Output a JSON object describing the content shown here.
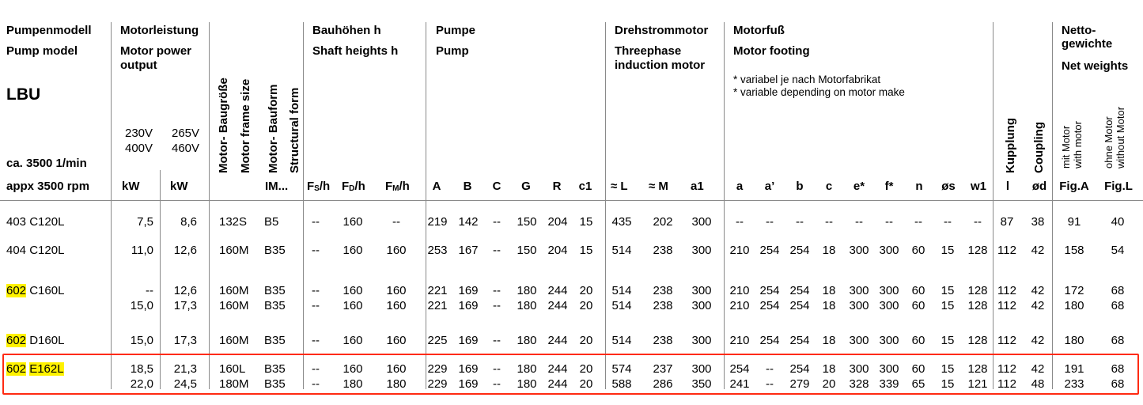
{
  "header": {
    "pump_model": {
      "de": "Pumpenmodell",
      "en": "Pump model",
      "series": "LBU",
      "speed_de": "ca. 3500 1/min",
      "speed_en": "appx 3500 rpm"
    },
    "motor_power": {
      "de": "Motorleistung",
      "en1": "Motor power",
      "en2": "output",
      "v1a": "230V",
      "v1b": "400V",
      "v2a": "265V",
      "v2b": "460V",
      "unit1": "kW",
      "unit2": "kW"
    },
    "motor_frame": {
      "de": "Motor- Baugröße",
      "en": "Motor frame size"
    },
    "motor_form": {
      "de": "Motor- Bauform",
      "en": "Structural form",
      "unit": "IM..."
    },
    "shaft_heights": {
      "de": "Bauhöhen h",
      "en": "Shaft heights h",
      "cols": [
        {
          "main": "F",
          "sub": "S",
          "tail": "/h"
        },
        {
          "main": "F",
          "sub": "D",
          "tail": "/h"
        },
        {
          "main": "F",
          "sub": "M",
          "tail": "/h"
        }
      ]
    },
    "pump": {
      "de": "Pumpe",
      "en": "Pump",
      "cols": [
        "A",
        "B",
        "C",
        "G",
        "R",
        "c1"
      ]
    },
    "motor": {
      "de": "Drehstrommotor",
      "en1": "Threephase",
      "en2": "induction motor",
      "cols": [
        "≈ L",
        "≈ M",
        "a1"
      ]
    },
    "footing": {
      "de": "Motorfuß",
      "en": "Motor footing",
      "note_de": "* variabel je nach Motorfabrikat",
      "note_en": "* variable depending on motor make",
      "cols": [
        "a",
        "a’",
        "b",
        "c",
        "e*",
        "f*",
        "n",
        "øs",
        "w1"
      ]
    },
    "coupling": {
      "de": "Kupplung",
      "en": "Coupling",
      "cols": [
        "l",
        "ød"
      ]
    },
    "weights": {
      "de1": "Netto-",
      "de2": "gewichte",
      "en": "Net weights",
      "with_de": "mit Motor",
      "with_en": "with motor",
      "without_de": "ohne Motor",
      "without_en": "without Motor",
      "cols": [
        "Fig.A",
        "Fig.L"
      ]
    }
  },
  "rows": [
    {
      "model_prefix": "403",
      "model_suffix": "C120L",
      "highlight_prefix": false,
      "highlight_suffix": false,
      "lines": [
        {
          "kw1": "7,5",
          "kw2": "8,6",
          "frame": "132S",
          "form": "B5",
          "fs": "--",
          "fd": "160",
          "fm": "--",
          "A": "219",
          "B": "142",
          "C": "--",
          "G": "150",
          "R": "204",
          "c1": "15",
          "L": "435",
          "M": "202",
          "a1": "300",
          "a": "--",
          "a2": "--",
          "b": "--",
          "c": "--",
          "e": "--",
          "f": "--",
          "n": "--",
          "s": "--",
          "w1": "--",
          "l": "87",
          "d": "38",
          "figA": "91",
          "figL": "40"
        }
      ]
    },
    {
      "model_prefix": "404",
      "model_suffix": "C120L",
      "highlight_prefix": false,
      "highlight_suffix": false,
      "lines": [
        {
          "kw1": "11,0",
          "kw2": "12,6",
          "frame": "160M",
          "form": "B35",
          "fs": "--",
          "fd": "160",
          "fm": "160",
          "A": "253",
          "B": "167",
          "C": "--",
          "G": "150",
          "R": "204",
          "c1": "15",
          "L": "514",
          "M": "238",
          "a1": "300",
          "a": "210",
          "a2": "254",
          "b": "254",
          "c": "18",
          "e": "300",
          "f": "300",
          "n": "60",
          "s": "15",
          "w1": "128",
          "l": "112",
          "d": "42",
          "figA": "158",
          "figL": "54"
        }
      ]
    },
    {
      "model_prefix": "602",
      "model_suffix": "C160L",
      "highlight_prefix": true,
      "highlight_suffix": false,
      "lines": [
        {
          "kw1": "--",
          "kw2": "12,6",
          "frame": "160M",
          "form": "B35",
          "fs": "--",
          "fd": "160",
          "fm": "160",
          "A": "221",
          "B": "169",
          "C": "--",
          "G": "180",
          "R": "244",
          "c1": "20",
          "L": "514",
          "M": "238",
          "a1": "300",
          "a": "210",
          "a2": "254",
          "b": "254",
          "c": "18",
          "e": "300",
          "f": "300",
          "n": "60",
          "s": "15",
          "w1": "128",
          "l": "112",
          "d": "42",
          "figA": "172",
          "figL": "68"
        },
        {
          "kw1": "15,0",
          "kw2": "17,3",
          "frame": "160M",
          "form": "B35",
          "fs": "--",
          "fd": "160",
          "fm": "160",
          "A": "221",
          "B": "169",
          "C": "--",
          "G": "180",
          "R": "244",
          "c1": "20",
          "L": "514",
          "M": "238",
          "a1": "300",
          "a": "210",
          "a2": "254",
          "b": "254",
          "c": "18",
          "e": "300",
          "f": "300",
          "n": "60",
          "s": "15",
          "w1": "128",
          "l": "112",
          "d": "42",
          "figA": "180",
          "figL": "68"
        }
      ]
    },
    {
      "model_prefix": "602",
      "model_suffix": "D160L",
      "highlight_prefix": true,
      "highlight_suffix": false,
      "lines": [
        {
          "kw1": "15,0",
          "kw2": "17,3",
          "frame": "160M",
          "form": "B35",
          "fs": "--",
          "fd": "160",
          "fm": "160",
          "A": "225",
          "B": "169",
          "C": "--",
          "G": "180",
          "R": "244",
          "c1": "20",
          "L": "514",
          "M": "238",
          "a1": "300",
          "a": "210",
          "a2": "254",
          "b": "254",
          "c": "18",
          "e": "300",
          "f": "300",
          "n": "60",
          "s": "15",
          "w1": "128",
          "l": "112",
          "d": "42",
          "figA": "180",
          "figL": "68"
        }
      ]
    },
    {
      "model_prefix": "602",
      "model_suffix": "E162L",
      "highlight_prefix": true,
      "highlight_suffix": true,
      "lines": [
        {
          "kw1": "18,5",
          "kw2": "21,3",
          "frame": "160L",
          "form": "B35",
          "fs": "--",
          "fd": "160",
          "fm": "160",
          "A": "229",
          "B": "169",
          "C": "--",
          "G": "180",
          "R": "244",
          "c1": "20",
          "L": "574",
          "M": "237",
          "a1": "300",
          "a": "254",
          "a2": "--",
          "b": "254",
          "c": "18",
          "e": "300",
          "f": "300",
          "n": "60",
          "s": "15",
          "w1": "128",
          "l": "112",
          "d": "42",
          "figA": "191",
          "figL": "68"
        },
        {
          "kw1": "22,0",
          "kw2": "24,5",
          "frame": "180M",
          "form": "B35",
          "fs": "--",
          "fd": "180",
          "fm": "180",
          "A": "229",
          "B": "169",
          "C": "--",
          "G": "180",
          "R": "244",
          "c1": "20",
          "L": "588",
          "M": "286",
          "a1": "350",
          "a": "241",
          "a2": "--",
          "b": "279",
          "c": "20",
          "e": "328",
          "f": "339",
          "n": "65",
          "s": "15",
          "w1": "121",
          "l": "112",
          "d": "48",
          "figA": "233",
          "figL": "68"
        }
      ]
    }
  ],
  "annotation": {
    "box_color": "#ff2a12",
    "highlight_color": "#fff200"
  }
}
